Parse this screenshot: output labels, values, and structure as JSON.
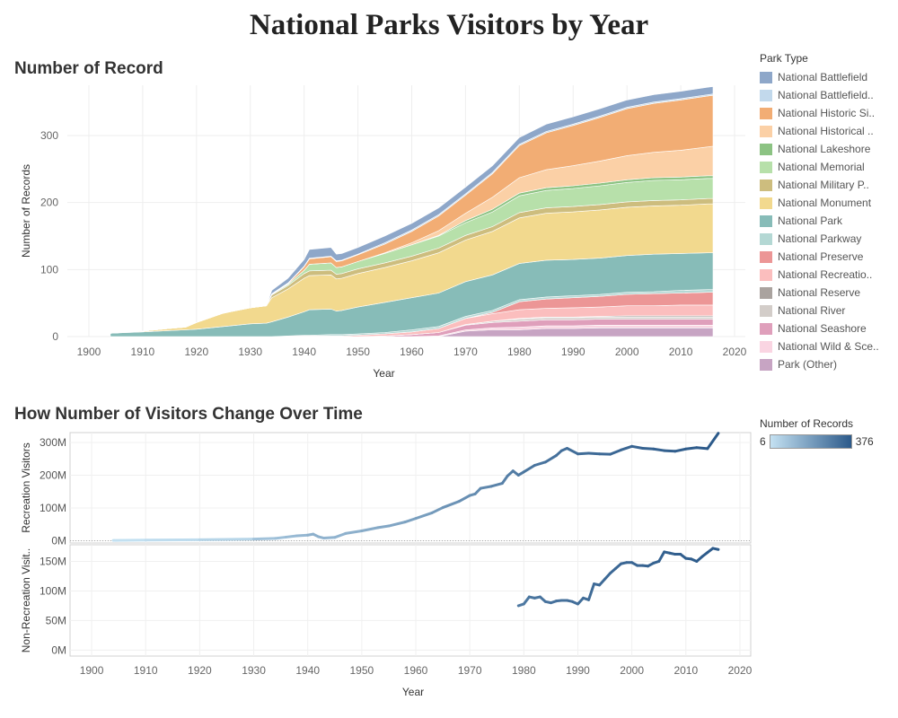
{
  "dashboard_title": "National Parks Visitors by Year",
  "sheet1_title": "Number of Record",
  "sheet2_title": "How Number of Visitors Change Over Time",
  "legend": {
    "title": "Park Type",
    "items": [
      {
        "label": "National Battlefield",
        "color": "#8ea7c9"
      },
      {
        "label": "National Battlefield..",
        "color": "#c2d9ec"
      },
      {
        "label": "National Historic Si..",
        "color": "#f2ad74"
      },
      {
        "label": "National Historical ..",
        "color": "#fbd0a6"
      },
      {
        "label": "National Lakeshore",
        "color": "#8cc383"
      },
      {
        "label": "National Memorial",
        "color": "#b7e0aa"
      },
      {
        "label": "National Military P..",
        "color": "#cdbd7e"
      },
      {
        "label": "National Monument",
        "color": "#f2d98e"
      },
      {
        "label": "National Park",
        "color": "#87bcb8"
      },
      {
        "label": "National Parkway",
        "color": "#b4d8d4"
      },
      {
        "label": "National Preserve",
        "color": "#ec9696"
      },
      {
        "label": "National Recreatio..",
        "color": "#fbbebe"
      },
      {
        "label": "National Reserve",
        "color": "#aaa39f"
      },
      {
        "label": "National River",
        "color": "#d3cdc9"
      },
      {
        "label": "National Seashore",
        "color": "#df9fbb"
      },
      {
        "label": "National Wild & Sce..",
        "color": "#fad5e2"
      },
      {
        "label": "Park (Other)",
        "color": "#c7a4c3"
      }
    ]
  },
  "color_legend": {
    "title": "Number of Records",
    "min_label": "6",
    "max_label": "376",
    "min_color": "#c4e1f2",
    "max_color": "#2c5a8a"
  },
  "chart_data": [
    {
      "type": "area",
      "stacked": true,
      "xlabel": "Year",
      "ylabel": "Number of Records",
      "xlim": [
        1896,
        2022
      ],
      "ylim": [
        0,
        375
      ],
      "xticks": [
        1900,
        1910,
        1920,
        1930,
        1940,
        1950,
        1960,
        1970,
        1980,
        1990,
        2000,
        2010,
        2020
      ],
      "yticks": [
        0,
        100,
        200,
        300
      ],
      "grid": true,
      "x": [
        1904,
        1910,
        1915,
        1918,
        1920,
        1925,
        1930,
        1933,
        1934,
        1937,
        1940,
        1941,
        1945,
        1946,
        1947,
        1950,
        1955,
        1960,
        1965,
        1970,
        1975,
        1980,
        1985,
        1990,
        1995,
        2000,
        2005,
        2010,
        2015,
        2016
      ],
      "series": [
        {
          "name": "Park (Other)",
          "values": [
            0,
            0,
            0,
            0,
            0,
            0,
            0,
            0,
            0,
            0,
            0,
            0,
            0,
            0,
            0,
            0,
            0,
            0,
            0,
            8,
            10,
            10,
            12,
            12,
            13,
            13,
            13,
            13,
            13,
            13
          ]
        },
        {
          "name": "National Wild & Sce..",
          "values": [
            0,
            0,
            0,
            0,
            0,
            0,
            0,
            0,
            0,
            0,
            0,
            0,
            0,
            0,
            0,
            0,
            0,
            0,
            1,
            2,
            3,
            4,
            4,
            4,
            4,
            4,
            4,
            4,
            4,
            4
          ]
        },
        {
          "name": "National Seashore",
          "values": [
            0,
            0,
            0,
            0,
            0,
            0,
            0,
            0,
            0,
            0,
            0,
            0,
            0,
            0,
            0,
            0,
            1,
            3,
            5,
            7,
            8,
            9,
            9,
            9,
            9,
            9,
            9,
            9,
            9,
            9
          ]
        },
        {
          "name": "National River",
          "values": [
            0,
            0,
            0,
            0,
            0,
            0,
            0,
            0,
            0,
            0,
            0,
            0,
            0,
            0,
            0,
            0,
            0,
            0,
            0,
            1,
            2,
            3,
            3,
            3,
            3,
            3,
            3,
            3,
            3,
            3
          ]
        },
        {
          "name": "National Reserve",
          "values": [
            0,
            0,
            0,
            0,
            0,
            0,
            0,
            0,
            0,
            0,
            0,
            0,
            0,
            0,
            0,
            0,
            0,
            0,
            0,
            0,
            0,
            1,
            1,
            1,
            1,
            2,
            2,
            2,
            2,
            2
          ]
        },
        {
          "name": "National Recreatio..",
          "values": [
            0,
            0,
            0,
            0,
            0,
            0,
            0,
            0,
            0,
            1,
            1,
            1,
            1,
            1,
            1,
            2,
            3,
            4,
            6,
            9,
            11,
            13,
            13,
            14,
            14,
            15,
            15,
            16,
            16,
            16
          ]
        },
        {
          "name": "National Preserve",
          "values": [
            0,
            0,
            0,
            0,
            0,
            0,
            0,
            0,
            0,
            0,
            0,
            0,
            0,
            0,
            0,
            0,
            0,
            0,
            0,
            0,
            2,
            12,
            14,
            15,
            16,
            17,
            18,
            18,
            19,
            19
          ]
        },
        {
          "name": "National Parkway",
          "values": [
            0,
            0,
            0,
            0,
            0,
            0,
            0,
            0,
            0,
            0,
            1,
            1,
            2,
            2,
            2,
            2,
            2,
            3,
            3,
            3,
            3,
            3,
            3,
            3,
            3,
            3,
            3,
            4,
            4,
            4
          ]
        },
        {
          "name": "National Park",
          "values": [
            5,
            7,
            9,
            10,
            11,
            15,
            19,
            20,
            22,
            28,
            35,
            38,
            38,
            35,
            36,
            40,
            45,
            48,
            50,
            52,
            53,
            54,
            55,
            54,
            54,
            55,
            56,
            55,
            55,
            55
          ]
        },
        {
          "name": "National Monument",
          "values": [
            0,
            1,
            3,
            4,
            10,
            20,
            24,
            26,
            36,
            42,
            50,
            51,
            51,
            48,
            48,
            50,
            52,
            55,
            60,
            62,
            65,
            68,
            70,
            71,
            72,
            72,
            72,
            72,
            73,
            73
          ]
        },
        {
          "name": "National Military P..",
          "values": [
            0,
            0,
            0,
            0,
            0,
            0,
            0,
            0,
            4,
            5,
            7,
            7,
            7,
            7,
            7,
            7,
            7,
            7,
            7,
            7,
            7,
            8,
            8,
            8,
            8,
            8,
            8,
            8,
            8,
            8
          ]
        },
        {
          "name": "National Memorial",
          "values": [
            0,
            0,
            0,
            0,
            0,
            0,
            0,
            0,
            1,
            2,
            5,
            10,
            11,
            10,
            10,
            11,
            14,
            17,
            18,
            19,
            22,
            25,
            26,
            27,
            28,
            29,
            30,
            30,
            30,
            30
          ]
        },
        {
          "name": "National Lakeshore",
          "values": [
            0,
            0,
            0,
            0,
            0,
            0,
            0,
            0,
            0,
            0,
            0,
            0,
            0,
            0,
            0,
            0,
            0,
            0,
            1,
            3,
            4,
            4,
            4,
            4,
            4,
            4,
            4,
            4,
            4,
            4
          ]
        },
        {
          "name": "National Historical ..",
          "values": [
            0,
            0,
            0,
            0,
            0,
            0,
            0,
            0,
            0,
            0,
            0,
            0,
            0,
            0,
            0,
            0,
            1,
            3,
            7,
            11,
            18,
            23,
            27,
            30,
            33,
            36,
            38,
            40,
            43,
            44
          ]
        },
        {
          "name": "National Historic Si..",
          "values": [
            0,
            0,
            0,
            0,
            0,
            0,
            0,
            0,
            0,
            1,
            5,
            8,
            9,
            9,
            9,
            10,
            13,
            17,
            22,
            27,
            35,
            48,
            55,
            60,
            65,
            70,
            73,
            75,
            76,
            76
          ]
        },
        {
          "name": "National Battlefield..",
          "values": [
            0,
            0,
            0,
            0,
            0,
            0,
            0,
            0,
            1,
            1,
            1,
            1,
            1,
            1,
            1,
            1,
            2,
            2,
            2,
            2,
            2,
            2,
            2,
            2,
            2,
            2,
            2,
            2,
            2,
            2
          ]
        },
        {
          "name": "National Battlefield",
          "values": [
            0,
            0,
            0,
            0,
            0,
            0,
            0,
            0,
            5,
            7,
            10,
            13,
            13,
            10,
            10,
            10,
            10,
            10,
            10,
            10,
            10,
            10,
            11,
            11,
            11,
            11,
            11,
            11,
            11,
            11
          ]
        }
      ]
    },
    {
      "type": "line",
      "xlabel": "Year",
      "ylabel": "Recreation Visitors",
      "xlim": [
        1896,
        2022
      ],
      "ylim": [
        -7,
        330
      ],
      "yticks": [
        0,
        100,
        200,
        300
      ],
      "ytick_labels": [
        "0M",
        "100M",
        "200M",
        "300M"
      ],
      "color_by": "Number of Records",
      "x": [
        1904,
        1910,
        1920,
        1930,
        1934,
        1936,
        1938,
        1940,
        1941,
        1942,
        1943,
        1945,
        1947,
        1950,
        1953,
        1955,
        1958,
        1960,
        1963,
        1965,
        1968,
        1970,
        1971,
        1972,
        1974,
        1976,
        1977,
        1978,
        1979,
        1980,
        1982,
        1984,
        1986,
        1987,
        1988,
        1990,
        1992,
        1994,
        1996,
        1998,
        2000,
        2002,
        2004,
        2006,
        2008,
        2010,
        2012,
        2014,
        2016
      ],
      "values": [
        1,
        2,
        3,
        5,
        7,
        11,
        15,
        17,
        20,
        12,
        8,
        10,
        22,
        30,
        40,
        45,
        57,
        68,
        85,
        101,
        120,
        138,
        143,
        160,
        166,
        175,
        198,
        213,
        200,
        210,
        230,
        240,
        260,
        275,
        282,
        265,
        267,
        265,
        264,
        277,
        288,
        282,
        280,
        275,
        273,
        280,
        284,
        281,
        328
      ],
      "records": [
        8,
        10,
        20,
        40,
        90,
        100,
        110,
        120,
        140,
        140,
        138,
        132,
        132,
        140,
        155,
        162,
        170,
        180,
        190,
        200,
        220,
        230,
        232,
        240,
        250,
        265,
        270,
        278,
        282,
        290,
        300,
        305,
        310,
        315,
        320,
        322,
        325,
        330,
        335,
        340,
        343,
        348,
        352,
        356,
        360,
        365,
        368,
        372,
        376
      ]
    },
    {
      "type": "line",
      "xlabel": "Year",
      "ylabel": "Non-Recreation Visit..",
      "xlim": [
        1896,
        2022
      ],
      "ylim": [
        -10,
        178
      ],
      "yticks": [
        0,
        50,
        100,
        150
      ],
      "ytick_labels": [
        "0M",
        "50M",
        "100M",
        "150M"
      ],
      "color_by": "Number of Records",
      "x": [
        1979,
        1980,
        1981,
        1982,
        1983,
        1984,
        1985,
        1986,
        1987,
        1988,
        1989,
        1990,
        1991,
        1992,
        1993,
        1994,
        1995,
        1996,
        1997,
        1998,
        1999,
        2000,
        2001,
        2002,
        2003,
        2004,
        2005,
        2006,
        2007,
        2008,
        2009,
        2010,
        2011,
        2012,
        2013,
        2014,
        2015,
        2016
      ],
      "values": [
        75,
        78,
        90,
        88,
        90,
        82,
        80,
        83,
        84,
        84,
        82,
        78,
        88,
        85,
        112,
        110,
        120,
        130,
        138,
        146,
        148,
        148,
        143,
        143,
        142,
        147,
        150,
        166,
        164,
        162,
        162,
        155,
        154,
        150,
        158,
        165,
        172,
        170
      ],
      "records": [
        285,
        290,
        295,
        300,
        302,
        305,
        307,
        310,
        312,
        315,
        318,
        320,
        322,
        325,
        328,
        330,
        333,
        335,
        338,
        340,
        342,
        343,
        345,
        348,
        350,
        352,
        354,
        356,
        358,
        360,
        362,
        365,
        366,
        368,
        370,
        372,
        374,
        376
      ]
    }
  ]
}
